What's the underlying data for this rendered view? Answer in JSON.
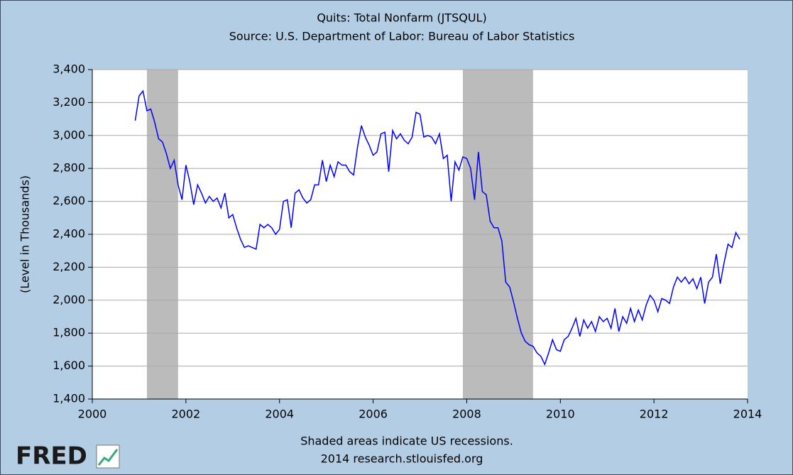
{
  "chart_data": {
    "type": "line",
    "title": "Quits: Total Nonfarm (JTSQUL)",
    "subtitle": "Source: U.S. Department of Labor: Bureau of Labor Statistics",
    "ylabel": "(Level in Thousands)",
    "note": "Shaded areas indicate US recessions.",
    "source": "2014 research.stlouisfed.org",
    "logo": "FRED",
    "xlim": [
      2000,
      2014
    ],
    "xticks": [
      2000,
      2002,
      2004,
      2006,
      2008,
      2010,
      2012,
      2014
    ],
    "ylim": [
      1400,
      3400
    ],
    "yticks": [
      {
        "value": 1400,
        "label": "1,400"
      },
      {
        "value": 1600,
        "label": "1,600"
      },
      {
        "value": 1800,
        "label": "1,800"
      },
      {
        "value": 2000,
        "label": "2,000"
      },
      {
        "value": 2200,
        "label": "2,200"
      },
      {
        "value": 2400,
        "label": "2,400"
      },
      {
        "value": 2600,
        "label": "2,600"
      },
      {
        "value": 2800,
        "label": "2,800"
      },
      {
        "value": 3000,
        "label": "3,000"
      },
      {
        "value": 3200,
        "label": "3,200"
      },
      {
        "value": 3400,
        "label": "3,400"
      }
    ],
    "grid": true,
    "recessions": [
      [
        2001.167,
        2001.833
      ],
      [
        2007.917,
        2009.417
      ]
    ],
    "recession_color": "#bbbbbb",
    "x": [
      2000.917,
      2001.0,
      2001.083,
      2001.167,
      2001.25,
      2001.333,
      2001.417,
      2001.5,
      2001.583,
      2001.667,
      2001.75,
      2001.833,
      2001.917,
      2002.0,
      2002.083,
      2002.167,
      2002.25,
      2002.333,
      2002.417,
      2002.5,
      2002.583,
      2002.667,
      2002.75,
      2002.833,
      2002.917,
      2003.0,
      2003.083,
      2003.167,
      2003.25,
      2003.333,
      2003.417,
      2003.5,
      2003.583,
      2003.667,
      2003.75,
      2003.833,
      2003.917,
      2004.0,
      2004.083,
      2004.167,
      2004.25,
      2004.333,
      2004.417,
      2004.5,
      2004.583,
      2004.667,
      2004.75,
      2004.833,
      2004.917,
      2005.0,
      2005.083,
      2005.167,
      2005.25,
      2005.333,
      2005.417,
      2005.5,
      2005.583,
      2005.667,
      2005.75,
      2005.833,
      2005.917,
      2006.0,
      2006.083,
      2006.167,
      2006.25,
      2006.333,
      2006.417,
      2006.5,
      2006.583,
      2006.667,
      2006.75,
      2006.833,
      2006.917,
      2007.0,
      2007.083,
      2007.167,
      2007.25,
      2007.333,
      2007.417,
      2007.5,
      2007.583,
      2007.667,
      2007.75,
      2007.833,
      2007.917,
      2008.0,
      2008.083,
      2008.167,
      2008.25,
      2008.333,
      2008.417,
      2008.5,
      2008.583,
      2008.667,
      2008.75,
      2008.833,
      2008.917,
      2009.0,
      2009.083,
      2009.167,
      2009.25,
      2009.333,
      2009.417,
      2009.5,
      2009.583,
      2009.667,
      2009.75,
      2009.833,
      2009.917,
      2010.0,
      2010.083,
      2010.167,
      2010.25,
      2010.333,
      2010.417,
      2010.5,
      2010.583,
      2010.667,
      2010.75,
      2010.833,
      2010.917,
      2011.0,
      2011.083,
      2011.167,
      2011.25,
      2011.333,
      2011.417,
      2011.5,
      2011.583,
      2011.667,
      2011.75,
      2011.833,
      2011.917,
      2012.0,
      2012.083,
      2012.167,
      2012.25,
      2012.333,
      2012.417,
      2012.5,
      2012.583,
      2012.667,
      2012.75,
      2012.833,
      2012.917,
      2013.0,
      2013.083,
      2013.167,
      2013.25,
      2013.333,
      2013.417,
      2013.5,
      2013.583,
      2013.667,
      2013.75,
      2013.833
    ],
    "series": [
      {
        "color": "#0000ff",
        "values": [
          3090,
          3240,
          3270,
          3150,
          3160,
          3080,
          2980,
          2960,
          2890,
          2800,
          2850,
          2700,
          2610,
          2820,
          2720,
          2580,
          2700,
          2650,
          2590,
          2630,
          2600,
          2620,
          2560,
          2650,
          2500,
          2520,
          2440,
          2370,
          2320,
          2330,
          2320,
          2310,
          2460,
          2440,
          2460,
          2440,
          2400,
          2430,
          2600,
          2610,
          2440,
          2650,
          2670,
          2620,
          2590,
          2610,
          2700,
          2700,
          2850,
          2720,
          2820,
          2750,
          2840,
          2820,
          2820,
          2780,
          2760,
          2930,
          3060,
          2990,
          2940,
          2880,
          2900,
          3010,
          3020,
          2780,
          3030,
          2980,
          3010,
          2970,
          2950,
          2990,
          3140,
          3130,
          2990,
          3000,
          2990,
          2950,
          3010,
          2860,
          2880,
          2600,
          2840,
          2790,
          2870,
          2860,
          2800,
          2610,
          2900,
          2660,
          2640,
          2480,
          2440,
          2440,
          2360,
          2110,
          2080,
          1990,
          1890,
          1800,
          1750,
          1730,
          1720,
          1680,
          1660,
          1610,
          1680,
          1760,
          1700,
          1690,
          1760,
          1780,
          1830,
          1890,
          1780,
          1880,
          1830,
          1870,
          1810,
          1900,
          1870,
          1890,
          1830,
          1950,
          1810,
          1900,
          1860,
          1950,
          1870,
          1940,
          1880,
          1970,
          2030,
          2000,
          1930,
          2010,
          2000,
          1980,
          2080,
          2140,
          2110,
          2140,
          2100,
          2130,
          2070,
          2140,
          1980,
          2110,
          2140,
          2280,
          2100,
          2230,
          2340,
          2320,
          2410,
          2370
        ]
      }
    ]
  }
}
